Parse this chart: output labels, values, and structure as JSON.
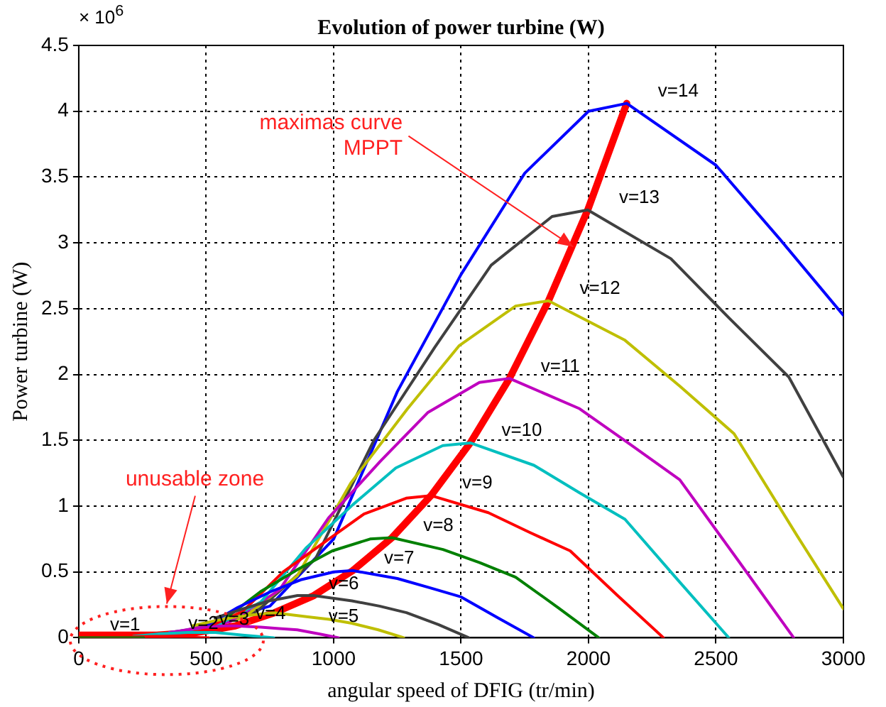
{
  "chart_data": {
    "type": "line",
    "title": "Evolution of power turbine (W)",
    "xlabel": "angular speed of DFIG (tr/min)",
    "ylabel": "Power turbine (W)",
    "xlim": [
      0,
      3000
    ],
    "xticks": [
      0,
      500,
      1000,
      1500,
      2000,
      2500,
      3000
    ],
    "ylim": [
      0,
      4.5
    ],
    "yticks": [
      0,
      0.5,
      1,
      1.5,
      2,
      2.5,
      3,
      3.5,
      4,
      4.5
    ],
    "grid": true,
    "legend": false,
    "marker": "none",
    "line_style": "solid",
    "annotations": [
      "× 10$^{6}$",
      {
        "text": "maximas curve\nMPPT",
        "x": 1940,
        "y": 2.97
      },
      "unusable zone"
    ],
    "series": [
      {
        "name": "v=14",
        "color": "#0000ff",
        "x": [
          500,
          750,
          1000,
          1250,
          1500,
          1750,
          2000,
          2150,
          2500,
          2750,
          3000
        ],
        "values": [
          0.1,
          0.24,
          0.75,
          1.87,
          2.76,
          3.53,
          4.0,
          4.06,
          3.59,
          3.03,
          2.45
        ]
      },
      {
        "name": "v=13",
        "color": "#404040",
        "x": [
          465,
          699,
          929,
          1158,
          1398,
          1618,
          1857,
          1997,
          2323,
          2556,
          2786,
          3000
        ],
        "values": [
          0.08,
          0.2,
          0.6,
          1.5,
          2.21,
          2.83,
          3.2,
          3.25,
          2.88,
          2.42,
          1.98,
          1.22
        ]
      },
      {
        "name": "v=12",
        "color": "#bfbf00",
        "x": [
          429,
          645,
          857,
          1069,
          1290,
          1493,
          1714,
          1843,
          2143,
          2359,
          2571,
          2820,
          3000
        ],
        "values": [
          0.06,
          0.15,
          0.47,
          1.18,
          1.74,
          2.22,
          2.52,
          2.56,
          2.26,
          1.91,
          1.55,
          0.77,
          0.22
        ]
      },
      {
        "name": "v=11",
        "color": "#bf00bf",
        "x": [
          394,
          592,
          786,
          980,
          1183,
          1369,
          1572,
          1690,
          1965,
          2163,
          2358,
          2586,
          2805
        ],
        "values": [
          0.05,
          0.12,
          0.36,
          0.91,
          1.34,
          1.71,
          1.94,
          1.97,
          1.74,
          1.47,
          1.2,
          0.59,
          0
        ]
      },
      {
        "name": "v=10",
        "color": "#00bfbf",
        "x": [
          358,
          538,
          714,
          891,
          1075,
          1244,
          1428,
          1536,
          1786,
          1966,
          2143,
          2350,
          2550
        ],
        "values": [
          0.04,
          0.09,
          0.27,
          0.68,
          1.01,
          1.29,
          1.46,
          1.48,
          1.31,
          1.1,
          0.9,
          0.44,
          0
        ]
      },
      {
        "name": "v=9",
        "color": "#ff0000",
        "x": [
          484,
          643,
          802,
          967,
          1119,
          1285,
          1382,
          1607,
          1769,
          1928,
          2114,
          2294
        ],
        "values": [
          0.06,
          0.2,
          0.5,
          0.73,
          0.94,
          1.06,
          1.08,
          0.95,
          0.8,
          0.66,
          0.32,
          0
        ]
      },
      {
        "name": "v=8",
        "color": "#008000",
        "x": [
          571,
          713,
          860,
          995,
          1143,
          1229,
          1429,
          1573,
          1714,
          1880,
          2040
        ],
        "values": [
          0.14,
          0.35,
          0.52,
          0.66,
          0.75,
          0.76,
          0.67,
          0.57,
          0.46,
          0.23,
          0
        ]
      },
      {
        "name": "v=7",
        "color": "#0000ff",
        "x": [
          500,
          624,
          753,
          871,
          1000,
          1075,
          1250,
          1376,
          1500,
          1645,
          1785
        ],
        "values": [
          0.09,
          0.23,
          0.35,
          0.44,
          0.5,
          0.51,
          0.45,
          0.38,
          0.31,
          0.15,
          0
        ]
      },
      {
        "name": "v=6",
        "color": "#404040",
        "x": [
          535,
          645,
          747,
          858,
          922,
          1072,
          1180,
          1286,
          1411,
          1530
        ],
        "values": [
          0.15,
          0.22,
          0.28,
          0.32,
          0.32,
          0.28,
          0.24,
          0.19,
          0.1,
          0
        ]
      },
      {
        "name": "v=5",
        "color": "#bfbf00",
        "x": [
          445,
          538,
          622,
          714,
          768,
          893,
          983,
          1071,
          1175,
          1275
        ],
        "values": [
          0.09,
          0.13,
          0.16,
          0.18,
          0.19,
          0.16,
          0.14,
          0.11,
          0.06,
          0
        ]
      },
      {
        "name": "v=4",
        "color": "#bf00bf",
        "x": [
          356,
          430,
          497,
          571,
          614,
          714,
          786,
          857,
          939,
          1019
        ],
        "values": [
          0.04,
          0.06,
          0.08,
          0.09,
          0.09,
          0.08,
          0.07,
          0.06,
          0.03,
          0
        ]
      },
      {
        "name": "v=3",
        "color": "#00bfbf",
        "x": [
          214,
          322,
          428,
          461,
          536,
          643,
          765
        ],
        "values": [
          0.01,
          0.03,
          0.04,
          0.04,
          0.04,
          0.02,
          0
        ]
      },
      {
        "name": "v=2",
        "color": "#ff0000",
        "x": [
          0,
          307,
          510
        ],
        "values": [
          0,
          0.01,
          0
        ]
      },
      {
        "name": "v=1",
        "color": "#008000",
        "x": [
          0,
          154,
          255
        ],
        "values": [
          0,
          0,
          0
        ]
      },
      {
        "color": "#ff0000",
        "x": [
          0,
          307,
          461,
          614,
          768,
          922,
          1075,
          1229,
          1382,
          1536,
          1690,
          1843,
          1997,
          2150
        ],
        "values": [
          0.02,
          0.02,
          0.04,
          0.09,
          0.19,
          0.32,
          0.51,
          0.76,
          1.08,
          1.48,
          1.97,
          2.56,
          3.25,
          4.06
        ]
      }
    ]
  }
}
